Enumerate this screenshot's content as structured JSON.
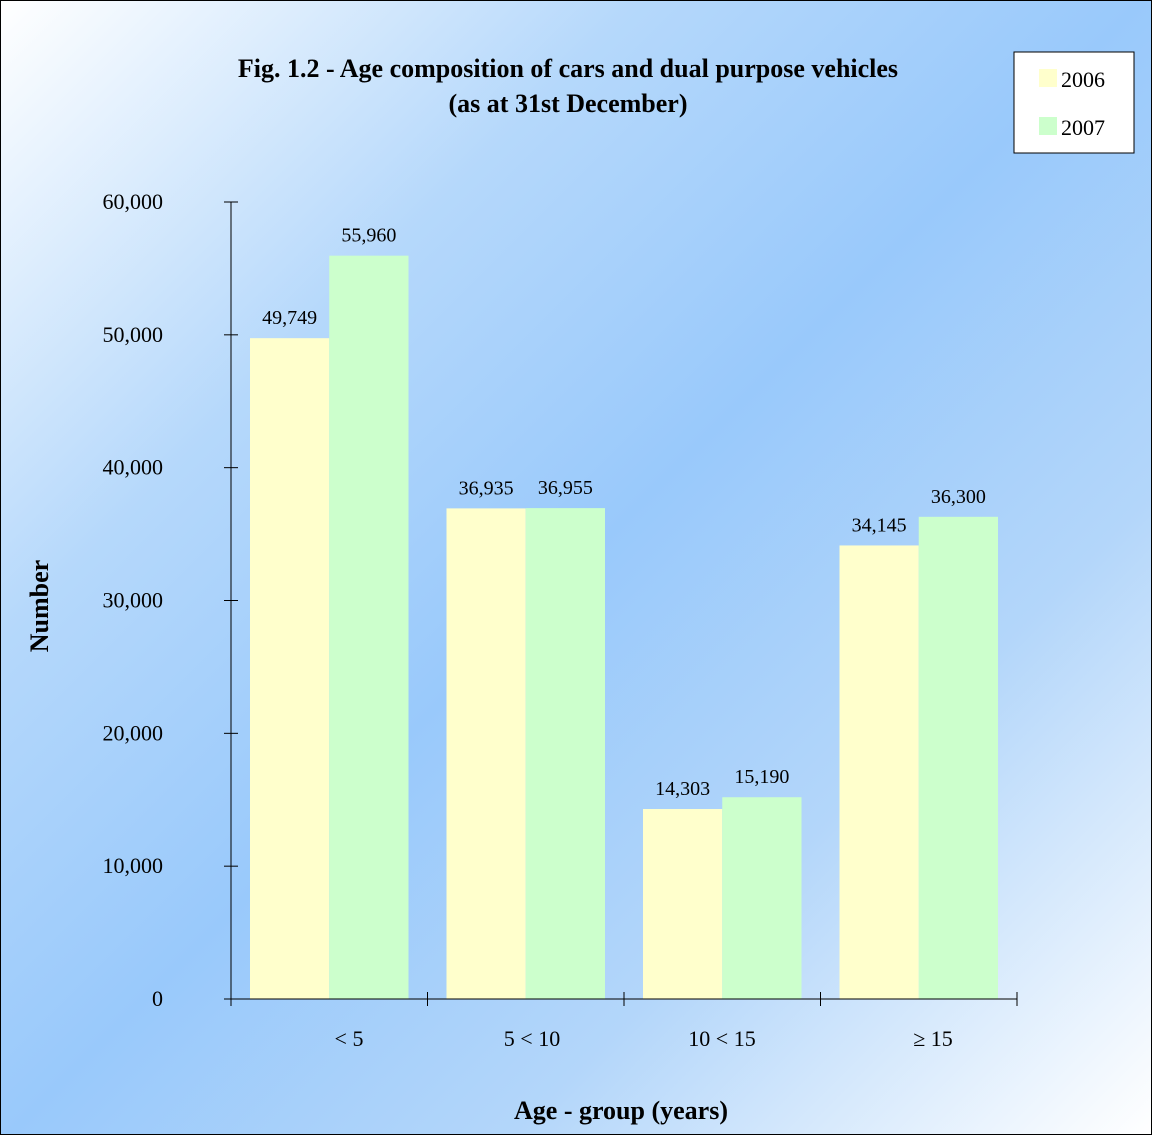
{
  "chart_data": {
    "type": "bar",
    "title": "Fig. 1.2 -  Age composition of cars and dual purpose vehicles",
    "subtitle": "(as at 31st  December)",
    "xlabel": "Age - group (years)",
    "ylabel": "Number",
    "categories": [
      "<  5",
      "5 < 10",
      "10 < 15",
      "≥ 15"
    ],
    "series": [
      {
        "name": "2006",
        "color": "#ffffcc",
        "values": [
          49749,
          36935,
          14303,
          34145
        ],
        "labels": [
          "49,749",
          "36,935",
          "14,303",
          "34,145"
        ]
      },
      {
        "name": "2007",
        "color": "#ccffcc",
        "values": [
          55960,
          36955,
          15190,
          36300
        ],
        "labels": [
          "55,960",
          "36,955",
          "15,190",
          "36,300"
        ]
      }
    ],
    "ylim": [
      0,
      60000
    ],
    "yticks": [
      0,
      10000,
      20000,
      30000,
      40000,
      50000,
      60000
    ],
    "ytick_labels": [
      "0",
      "10,000",
      "20,000",
      "30,000",
      "40,000",
      "50,000",
      "60,000"
    ],
    "grid": false,
    "legend_position": "top-right"
  }
}
